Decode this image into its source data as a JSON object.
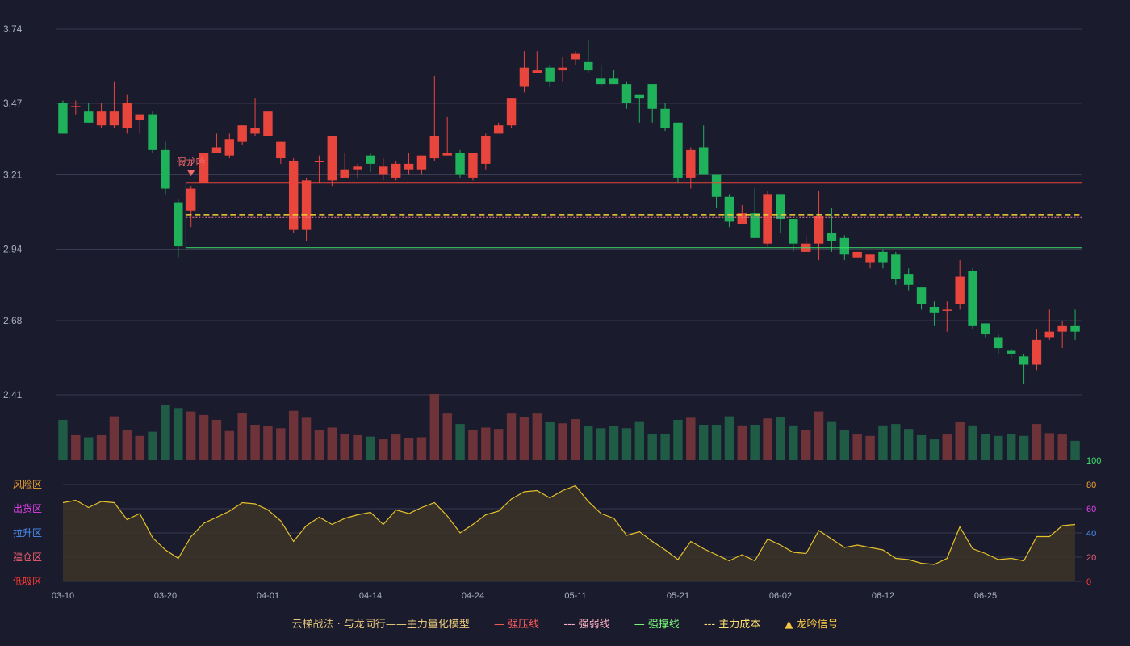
{
  "colors": {
    "background": "#1b1b2e",
    "up": "#e8453c",
    "down": "#1fb25a",
    "vol_up": "#6e3338",
    "vol_down": "#1f5b45",
    "grid": "#3a3a50",
    "axis_text": "#aab0c0",
    "pressure": "#e8453c",
    "weak": "#f27aa0",
    "support": "#3de26b",
    "cost": "#f5d033",
    "indicator": "#e6c229"
  },
  "chart_data": [
    {
      "type": "candlestick",
      "y_ticks": [
        "3.74",
        "3.47",
        "3.21",
        "2.94",
        "2.68",
        "2.41"
      ],
      "ylim": [
        2.41,
        3.74
      ],
      "x_ticks": [
        "03-10",
        "03-20",
        "04-01",
        "04-14",
        "04-24",
        "05-11",
        "05-21",
        "06-02",
        "06-12",
        "06-25"
      ],
      "candles": [
        [
          3.47,
          3.36,
          3.48,
          3.36
        ],
        [
          3.46,
          3.46,
          3.48,
          3.43
        ],
        [
          3.44,
          3.4,
          3.47,
          3.4
        ],
        [
          3.39,
          3.44,
          3.47,
          3.38
        ],
        [
          3.39,
          3.44,
          3.55,
          3.38
        ],
        [
          3.38,
          3.47,
          3.5,
          3.36
        ],
        [
          3.41,
          3.43,
          3.43,
          3.36
        ],
        [
          3.43,
          3.3,
          3.44,
          3.29
        ],
        [
          3.3,
          3.16,
          3.33,
          3.14
        ],
        [
          3.11,
          2.95,
          3.12,
          2.91
        ],
        [
          3.08,
          3.16,
          3.17,
          3.02
        ],
        [
          3.18,
          3.29,
          3.29,
          3.18
        ],
        [
          3.29,
          3.31,
          3.36,
          3.29
        ],
        [
          3.28,
          3.34,
          3.36,
          3.27
        ],
        [
          3.33,
          3.39,
          3.39,
          3.32
        ],
        [
          3.36,
          3.38,
          3.49,
          3.35
        ],
        [
          3.35,
          3.44,
          3.44,
          3.35
        ],
        [
          3.27,
          3.33,
          3.33,
          3.25
        ],
        [
          3.01,
          3.26,
          3.27,
          3.0
        ],
        [
          3.01,
          3.19,
          3.2,
          2.97
        ],
        [
          3.26,
          3.26,
          3.28,
          3.18
        ],
        [
          3.19,
          3.35,
          3.35,
          3.17
        ],
        [
          3.2,
          3.23,
          3.29,
          3.2
        ],
        [
          3.23,
          3.24,
          3.25,
          3.2
        ],
        [
          3.28,
          3.25,
          3.29,
          3.22
        ],
        [
          3.21,
          3.24,
          3.27,
          3.19
        ],
        [
          3.2,
          3.25,
          3.26,
          3.19
        ],
        [
          3.23,
          3.25,
          3.29,
          3.21
        ],
        [
          3.23,
          3.28,
          3.28,
          3.21
        ],
        [
          3.27,
          3.35,
          3.57,
          3.26
        ],
        [
          3.28,
          3.29,
          3.42,
          3.28
        ],
        [
          3.29,
          3.21,
          3.3,
          3.2
        ],
        [
          3.2,
          3.29,
          3.29,
          3.19
        ],
        [
          3.25,
          3.35,
          3.36,
          3.23
        ],
        [
          3.36,
          3.39,
          3.4,
          3.36
        ],
        [
          3.39,
          3.49,
          3.49,
          3.38
        ],
        [
          3.53,
          3.6,
          3.66,
          3.51
        ],
        [
          3.58,
          3.59,
          3.66,
          3.58
        ],
        [
          3.6,
          3.55,
          3.61,
          3.53
        ],
        [
          3.59,
          3.6,
          3.64,
          3.55
        ],
        [
          3.63,
          3.65,
          3.66,
          3.61
        ],
        [
          3.62,
          3.59,
          3.7,
          3.58
        ],
        [
          3.56,
          3.54,
          3.61,
          3.53
        ],
        [
          3.56,
          3.54,
          3.59,
          3.54
        ],
        [
          3.54,
          3.47,
          3.55,
          3.45
        ],
        [
          3.5,
          3.49,
          3.5,
          3.4
        ],
        [
          3.54,
          3.45,
          3.54,
          3.4
        ],
        [
          3.45,
          3.38,
          3.47,
          3.37
        ],
        [
          3.4,
          3.2,
          3.4,
          3.18
        ],
        [
          3.2,
          3.3,
          3.31,
          3.16
        ],
        [
          3.31,
          3.21,
          3.39,
          3.21
        ],
        [
          3.21,
          3.13,
          3.21,
          3.09
        ],
        [
          3.13,
          3.04,
          3.14,
          3.02
        ],
        [
          3.03,
          3.07,
          3.1,
          3.03
        ],
        [
          3.07,
          2.98,
          3.16,
          2.98
        ],
        [
          2.96,
          3.14,
          3.15,
          2.95
        ],
        [
          3.14,
          3.05,
          3.14,
          3.0
        ],
        [
          3.05,
          2.96,
          3.05,
          2.93
        ],
        [
          2.93,
          2.96,
          2.99,
          2.93
        ],
        [
          2.96,
          3.06,
          3.15,
          2.9
        ],
        [
          3.0,
          2.97,
          3.09,
          2.93
        ],
        [
          2.98,
          2.92,
          2.99,
          2.9
        ],
        [
          2.91,
          2.93,
          2.93,
          2.91
        ],
        [
          2.89,
          2.92,
          2.92,
          2.87
        ],
        [
          2.93,
          2.89,
          2.94,
          2.87
        ],
        [
          2.92,
          2.83,
          2.93,
          2.81
        ],
        [
          2.85,
          2.81,
          2.87,
          2.79
        ],
        [
          2.8,
          2.74,
          2.8,
          2.72
        ],
        [
          2.73,
          2.71,
          2.75,
          2.66
        ],
        [
          2.72,
          2.72,
          2.75,
          2.64
        ],
        [
          2.74,
          2.84,
          2.9,
          2.72
        ],
        [
          2.86,
          2.66,
          2.87,
          2.65
        ],
        [
          2.67,
          2.63,
          2.67,
          2.62
        ],
        [
          2.62,
          2.58,
          2.63,
          2.56
        ],
        [
          2.57,
          2.56,
          2.58,
          2.54
        ],
        [
          2.55,
          2.52,
          2.56,
          2.45
        ],
        [
          2.52,
          2.61,
          2.65,
          2.5
        ],
        [
          2.62,
          2.64,
          2.72,
          2.61
        ],
        [
          2.64,
          2.66,
          2.68,
          2.58
        ],
        [
          2.66,
          2.64,
          2.72,
          2.61
        ]
      ],
      "volume": [
        58,
        36,
        33,
        36,
        63,
        44,
        35,
        41,
        80,
        75,
        70,
        65,
        58,
        42,
        68,
        51,
        49,
        46,
        71,
        61,
        44,
        47,
        38,
        36,
        34,
        30,
        37,
        32,
        33,
        95,
        67,
        52,
        44,
        47,
        45,
        67,
        62,
        67,
        55,
        53,
        59,
        49,
        46,
        49,
        46,
        56,
        38,
        38,
        58,
        61,
        51,
        51,
        63,
        50,
        51,
        60,
        62,
        50,
        43,
        70,
        56,
        44,
        37,
        35,
        50,
        52,
        45,
        36,
        30,
        37,
        55,
        50,
        38,
        35,
        38,
        35,
        52,
        39,
        37,
        28
      ],
      "lines": {
        "pressure": 3.18,
        "weak": 3.055,
        "cost": 3.065,
        "support": 2.945,
        "start_index": 10
      },
      "annotation": {
        "label": "假龙吟",
        "index": 10,
        "price": 3.22
      }
    },
    {
      "type": "line",
      "y_ticks": [
        "100",
        "80",
        "60",
        "40",
        "20",
        "0"
      ],
      "tick_colors": [
        "#3de26b",
        "#f0a030",
        "#e040e8",
        "#4a8ff0",
        "#f06070",
        "#ff3b30"
      ],
      "ylim": [
        0,
        100
      ],
      "zones": [
        "风险区",
        "出货区",
        "拉升区",
        "建仓区",
        "低吸区"
      ],
      "zone_colors": [
        "#f0a030",
        "#e040e8",
        "#4a8ff0",
        "#f06070",
        "#ff3b30"
      ],
      "values": [
        65,
        67,
        61,
        66,
        65,
        51,
        56,
        36,
        26,
        19,
        37,
        48,
        53,
        58,
        65,
        64,
        59,
        50,
        33,
        46,
        53,
        47,
        52,
        55,
        57,
        47,
        59,
        56,
        61,
        65,
        54,
        40,
        47,
        55,
        58,
        68,
        74,
        75,
        69,
        75,
        79,
        66,
        56,
        52,
        38,
        41,
        33,
        26,
        18,
        33,
        27,
        22,
        17,
        22,
        17,
        35,
        30,
        24,
        23,
        42,
        35,
        28,
        30,
        28,
        26,
        19,
        18,
        15,
        14,
        19,
        45,
        27,
        23,
        18,
        19,
        17,
        37,
        37,
        46,
        47
      ]
    }
  ],
  "legend": {
    "title": "云梯战法 · 与龙同行——主力量化模型",
    "items": [
      {
        "symbol": "—",
        "label": "强压线",
        "color": "#ff5a5a"
      },
      {
        "symbol": "---",
        "label": "强弱线",
        "color": "#ffb0c0"
      },
      {
        "symbol": "—",
        "label": "强撑线",
        "color": "#7dff7d"
      },
      {
        "symbol": "---",
        "label": "主力成本",
        "color": "#ffe070"
      },
      {
        "symbol": "▲",
        "label": "龙吟信号",
        "color": "#f5c542"
      }
    ]
  }
}
